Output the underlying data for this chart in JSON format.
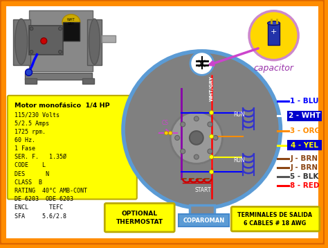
{
  "bg_color": "#FF8C00",
  "motor_specs_title": "Motor monofásico  1/4 HP",
  "motor_specs": [
    "115/230 Volts",
    "5/2.5 Amps",
    "1725 rpm.",
    "60 Hz.",
    "1 Fase",
    "SER. F.   1.35Ø",
    "CODE    L",
    "DES      N",
    "CLASS  B",
    "RATING  40°C AMB-CONT",
    "DE 6203  ODE 6203",
    "ENCL      TEFC",
    "SFA     5.6/2.8"
  ],
  "wire_labels": [
    "1 - BLU",
    "2 - WHT",
    "3 - ORG",
    "4 - YEL",
    "J - BRN",
    "J - BRN",
    "5 - BLK",
    "8 - RED"
  ],
  "wire_text_colors": [
    "#0000FF",
    "#FFFFFF",
    "#FF8C00",
    "#FFFF00",
    "#8B4513",
    "#8B4513",
    "#333333",
    "#FF0000"
  ],
  "wire_box_colors": [
    null,
    "#0000CC",
    null,
    "#0000CC",
    null,
    null,
    null,
    null
  ],
  "wire_line_colors": [
    "#0000FF",
    "#FFFFFF",
    "#FF8C00",
    "#FFFF00",
    "#8B4513",
    "#8B4513",
    "#555555",
    "#FF0000"
  ],
  "run_label": "RUN",
  "start_label": "START",
  "capacitor_label": "capacitor",
  "optional_thermostat": "OPTIONAL\nTHERMOSTAT",
  "coparoman": "COPAROMAN",
  "terminales": "TERMINALES DE SALIDA\n6 CABLES # 18 AWG",
  "circle_color": "#5B9BD5",
  "circle_fill": "#808080",
  "spec_bg": "#FFFF00",
  "cap_circle_fill": "#FFD700",
  "cap_circle_edge": "#CC88CC",
  "arrow_color": "#CC44CC",
  "wht_gry_color": "#AAAAAA",
  "cs_color": "#CC44CC",
  "purple_wire": "#8800AA",
  "red_wire": "#FF0000",
  "blue_coil": "#3333CC",
  "red_coil": "#CC0000"
}
